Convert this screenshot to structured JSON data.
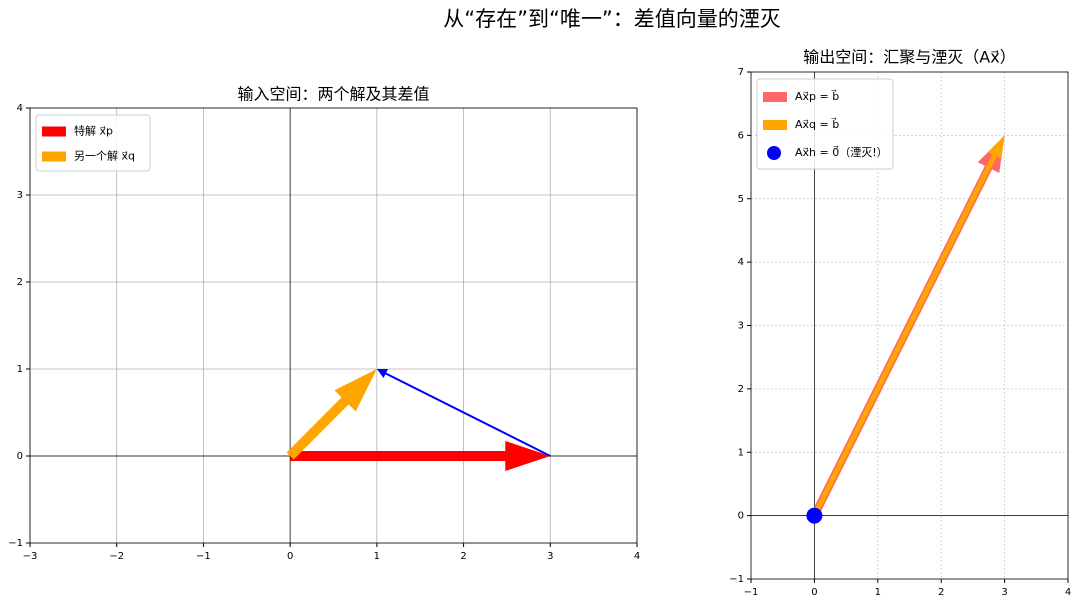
{
  "title": "从“存在”到“唯一”：差值向量的湮灭",
  "chart_data": [
    {
      "type": "quiver",
      "title": "输入空间：两个解及其差值",
      "xlim": [
        -3,
        4
      ],
      "ylim": [
        -1,
        4
      ],
      "xticks": [
        {
          "value": -3,
          "label": "−3"
        },
        {
          "value": -2,
          "label": "−2"
        },
        {
          "value": -1,
          "label": "−1"
        },
        0,
        1,
        2,
        3,
        4
      ],
      "yticks": [
        {
          "value": -1,
          "label": "−1"
        },
        0,
        1,
        2,
        3,
        4
      ],
      "grid": "solid",
      "zero_lines": true,
      "legend": "upper left",
      "series": [
        {
          "name": "特解 x⃗p",
          "color": "#ff0000",
          "x0": 0,
          "y0": 0,
          "dx": 3,
          "dy": 0
        },
        {
          "name": "另一个解 x⃗q",
          "color": "#ffa500",
          "x0": 0,
          "y0": 0,
          "dx": 1,
          "dy": 1
        },
        {
          "color": "#0000ff",
          "x0": 3,
          "y0": 0,
          "dx": -2,
          "dy": 1
        }
      ]
    },
    {
      "type": "quiver",
      "title": "输出空间：汇聚与湮灭（Ax⃗）",
      "xlim": [
        -1,
        4
      ],
      "ylim": [
        -1,
        7
      ],
      "xticks": [
        {
          "value": -1,
          "label": "−1"
        },
        0,
        1,
        2,
        3,
        4
      ],
      "yticks": [
        {
          "value": -1,
          "label": "−1"
        },
        0,
        1,
        2,
        3,
        4,
        5,
        6,
        7
      ],
      "grid": "dotted",
      "zero_lines": true,
      "legend": "upper left",
      "series": [
        {
          "name": "Ax⃗p = b⃗",
          "color": "#ff6666",
          "x0": 0,
          "y0": 0,
          "dx": 3,
          "dy": 6
        },
        {
          "name": "Ax⃗q = b⃗",
          "color": "#ffa500",
          "x0": 0,
          "y0": 0,
          "dx": 3,
          "dy": 6
        },
        {
          "name": "Ax⃗h = 0⃗（湮灭!）",
          "color": "#0000ff",
          "kind": "point",
          "x": 0,
          "y": 0
        }
      ]
    }
  ]
}
